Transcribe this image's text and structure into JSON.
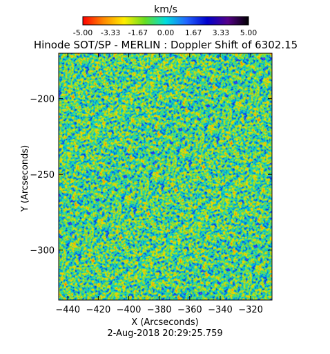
{
  "colorbar": {
    "unit_label": "km/s",
    "ticks": [
      "-5.00",
      "-3.33",
      "-1.67",
      "0.00",
      "1.67",
      "3.33",
      "5.00"
    ],
    "range": [
      -5.0,
      5.0
    ],
    "colors": [
      "#ff0000",
      "#ff8800",
      "#ffee00",
      "#66dd22",
      "#00dddd",
      "#2266ff",
      "#0000cc",
      "#550088",
      "#000000"
    ]
  },
  "chart_data": {
    "type": "heatmap",
    "title": "Hinode SOT/SP - MERLIN : Doppler Shift of 6302.15",
    "xlabel": "X (Arcseconds)",
    "ylabel": "Y (Arcseconds)",
    "xlim": [
      -446,
      -306
    ],
    "ylim": [
      -333,
      -170
    ],
    "x_ticks": [
      -440,
      -420,
      -400,
      -380,
      -360,
      -340,
      -320
    ],
    "y_ticks": [
      -200,
      -250,
      -300
    ],
    "value_range": [
      -5.0,
      5.0
    ],
    "value_unit": "km/s",
    "timestamp": "2-Aug-2018 20:29:25.759"
  }
}
